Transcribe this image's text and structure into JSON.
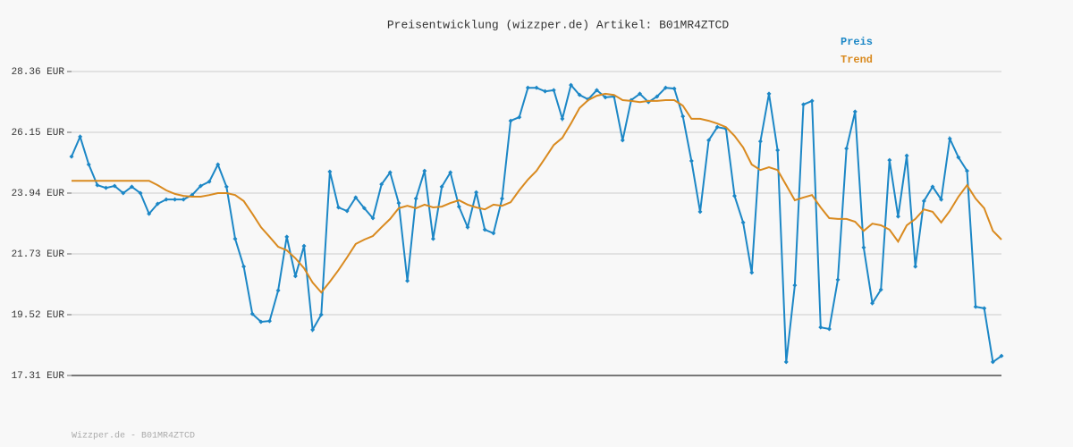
{
  "chart_data": {
    "type": "line",
    "title": "Preisentwicklung (wizzper.de) Artikel: B01MR4ZTCD",
    "footer": "Wizzper.de - B01MR4ZTCD",
    "ylim": [
      17.31,
      28.36
    ],
    "yticks": [
      {
        "value": 17.31,
        "label": "17.31 EUR"
      },
      {
        "value": 19.52,
        "label": "19.52 EUR"
      },
      {
        "value": 21.73,
        "label": "21.73 EUR"
      },
      {
        "value": 23.94,
        "label": "23.94 EUR"
      },
      {
        "value": 26.15,
        "label": "26.15 EUR"
      },
      {
        "value": 28.36,
        "label": "28.36 EUR"
      }
    ],
    "grid": true,
    "legend": "top-right",
    "series": [
      {
        "name": "Preis",
        "color": "#1c87c6",
        "markers": true,
        "values": [
          25.27,
          25.99,
          24.98,
          24.23,
          24.13,
          24.2,
          23.94,
          24.17,
          23.94,
          23.19,
          23.55,
          23.71,
          23.71,
          23.71,
          23.87,
          24.2,
          24.36,
          24.98,
          24.17,
          22.28,
          21.27,
          19.55,
          19.26,
          19.29,
          20.4,
          22.35,
          20.92,
          22.02,
          18.97,
          19.52,
          24.72,
          23.42,
          23.29,
          23.78,
          23.39,
          23.03,
          24.26,
          24.69,
          23.58,
          20.75,
          23.74,
          24.75,
          22.28,
          24.17,
          24.69,
          23.45,
          22.7,
          23.97,
          22.61,
          22.48,
          23.74,
          26.57,
          26.7,
          27.77,
          27.77,
          27.64,
          27.68,
          26.64,
          27.87,
          27.51,
          27.35,
          27.68,
          27.42,
          27.45,
          25.86,
          27.32,
          27.55,
          27.25,
          27.45,
          27.77,
          27.74,
          26.73,
          25.11,
          23.26,
          25.86,
          26.34,
          26.28,
          23.84,
          22.87,
          21.05,
          25.82,
          27.55,
          25.5,
          17.8,
          20.59,
          27.16,
          27.29,
          19.06,
          19.0,
          20.79,
          25.56,
          26.9,
          21.96,
          19.94,
          20.43,
          25.14,
          23.09,
          25.3,
          21.27,
          23.65,
          24.17,
          23.71,
          25.92,
          25.24,
          24.75,
          19.81,
          19.75,
          17.8,
          18.02
        ]
      },
      {
        "name": "Trend",
        "color": "#d98a1f",
        "markers": false,
        "values": [
          24.39,
          24.39,
          24.39,
          24.39,
          24.39,
          24.39,
          24.39,
          24.39,
          24.39,
          24.39,
          24.23,
          24.04,
          23.91,
          23.84,
          23.81,
          23.81,
          23.87,
          23.94,
          23.94,
          23.87,
          23.65,
          23.19,
          22.7,
          22.35,
          21.99,
          21.86,
          21.57,
          21.21,
          20.69,
          20.33,
          20.72,
          21.14,
          21.6,
          22.09,
          22.25,
          22.38,
          22.7,
          23.0,
          23.39,
          23.48,
          23.39,
          23.52,
          23.42,
          23.45,
          23.58,
          23.68,
          23.52,
          23.42,
          23.35,
          23.52,
          23.48,
          23.61,
          24.04,
          24.43,
          24.75,
          25.21,
          25.69,
          25.95,
          26.47,
          27.03,
          27.32,
          27.48,
          27.55,
          27.51,
          27.32,
          27.29,
          27.25,
          27.29,
          27.29,
          27.32,
          27.32,
          27.12,
          26.64,
          26.64,
          26.57,
          26.47,
          26.34,
          26.02,
          25.6,
          24.98,
          24.78,
          24.88,
          24.78,
          24.23,
          23.68,
          23.78,
          23.87,
          23.42,
          23.03,
          23.0,
          23.0,
          22.9,
          22.57,
          22.83,
          22.77,
          22.61,
          22.18,
          22.77,
          23.0,
          23.35,
          23.26,
          22.87,
          23.29,
          23.81,
          24.23,
          23.74,
          23.39,
          22.57,
          22.25
        ]
      }
    ]
  }
}
